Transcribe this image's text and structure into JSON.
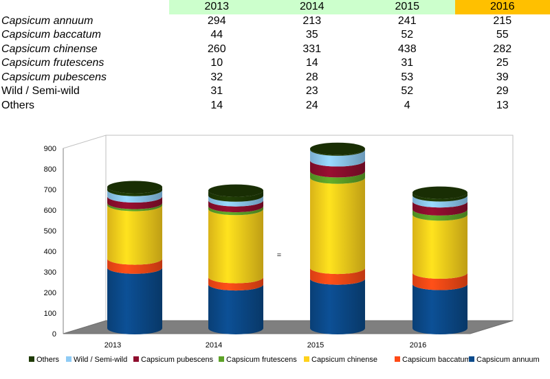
{
  "table": {
    "years": [
      "2013",
      "2014",
      "2015",
      "2016"
    ],
    "highlight_year": "2016",
    "header_color": "#ccffcc",
    "highlight_color": "#ffc000",
    "rows": [
      {
        "label": "Capsicum annuum",
        "italic": true,
        "values": [
          "294",
          "213",
          "241",
          "215"
        ]
      },
      {
        "label": "Capsicum baccatum",
        "italic": true,
        "values": [
          "44",
          "35",
          "52",
          "55"
        ]
      },
      {
        "label": "Capsicum chinense",
        "italic": true,
        "values": [
          "260",
          "331",
          "438",
          "282"
        ]
      },
      {
        "label": "Capsicum frutescens",
        "italic": true,
        "values": [
          "10",
          "14",
          "31",
          "25"
        ]
      },
      {
        "label": "Capsicum pubescens",
        "italic": true,
        "values": [
          "32",
          "28",
          "53",
          "39"
        ]
      },
      {
        "label": "Wild / Semi-wild",
        "italic": false,
        "values": [
          "31",
          "23",
          "52",
          "29"
        ]
      },
      {
        "label": "Others",
        "italic": false,
        "values": [
          "14",
          "24",
          "4",
          "13"
        ]
      }
    ]
  },
  "chart_data": {
    "type": "bar",
    "subtype": "stacked 3D cylinder",
    "categories": [
      "2013",
      "2014",
      "2015",
      "2016"
    ],
    "ylim": [
      0,
      900
    ],
    "yticks": [
      "0",
      "100",
      "200",
      "300",
      "400",
      "500",
      "600",
      "700",
      "800",
      "900"
    ],
    "grid": false,
    "legend_position": "bottom",
    "stray_mark": "=",
    "series": [
      {
        "name": "Capsicum annuum",
        "color": "#0b4a8b",
        "values": [
          294,
          213,
          241,
          215
        ]
      },
      {
        "name": "Capsicum baccatum",
        "color": "#ff4a16",
        "values": [
          44,
          35,
          52,
          55
        ]
      },
      {
        "name": "Capsicum chinense",
        "color": "#ffd21c",
        "values": [
          260,
          331,
          438,
          282
        ]
      },
      {
        "name": "Capsicum frutescens",
        "color": "#5da227",
        "values": [
          10,
          14,
          31,
          25
        ]
      },
      {
        "name": "Capsicum pubescens",
        "color": "#8f0e2e",
        "values": [
          32,
          28,
          53,
          39
        ]
      },
      {
        "name": "Wild / Semi-wild",
        "color": "#8fcbf5",
        "values": [
          31,
          23,
          52,
          29
        ]
      },
      {
        "name": "Others",
        "color": "#1f3a05",
        "values": [
          14,
          24,
          4,
          13
        ]
      }
    ],
    "legend_order": [
      "Others",
      "Wild / Semi-wild",
      "Capsicum pubescens",
      "Capsicum frutescens",
      "Capsicum chinense",
      "Capsicum baccatum",
      "Capsicum annuum"
    ]
  }
}
